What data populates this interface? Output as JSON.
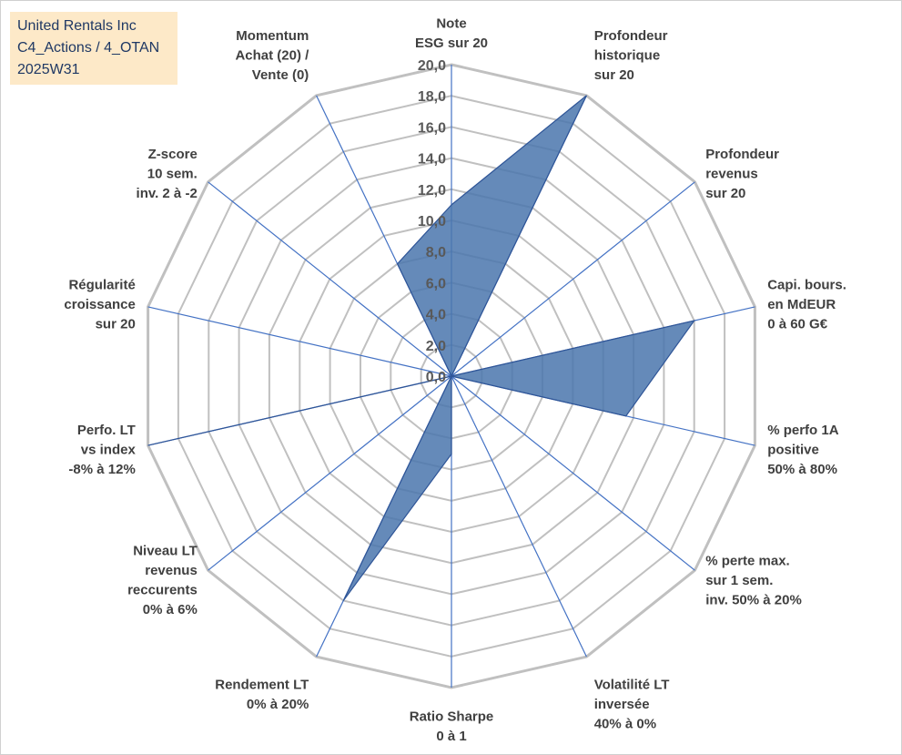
{
  "header": {
    "lines": [
      "United Rentals Inc",
      "C4_Actions / 4_OTAN",
      "2025W31"
    ]
  },
  "colors": {
    "grid": "#c0c0c0",
    "spoke": "#4472c4",
    "fill": "#4a76ad",
    "fill_stroke": "#2f5597",
    "title_bg": "#fde9c8"
  },
  "chart_data": {
    "type": "radar",
    "rmin": 0,
    "rmax": 20,
    "ticks": [
      "0,0",
      "2,0",
      "4,0",
      "6,0",
      "8,0",
      "10,0",
      "12,0",
      "14,0",
      "16,0",
      "18,0",
      "20,0"
    ],
    "axes": [
      [
        "Note",
        "ESG sur 20"
      ],
      [
        "Profondeur",
        "historique",
        "sur 20"
      ],
      [
        "Profondeur",
        "revenus",
        "sur 20"
      ],
      [
        "Capi. bours.",
        "en MdEUR",
        "0 à 60 G€"
      ],
      [
        "% perfo 1A",
        "positive",
        "50% à 80%"
      ],
      [
        "% perte max.",
        "sur 1 sem.",
        "inv. 50% à 20%"
      ],
      [
        "Volatilité LT",
        "inversée",
        "40% à 0%"
      ],
      [
        "Ratio Sharpe",
        "0 à 1"
      ],
      [
        "Rendement LT",
        "0% à 20%"
      ],
      [
        "Niveau LT",
        "revenus",
        "reccurents",
        "0% à 6%"
      ],
      [
        "Perfo. LT",
        "vs index",
        "-8% à 12%"
      ],
      [
        "Régularité",
        "croissance",
        "sur 20"
      ],
      [
        "Z-score",
        "10 sem.",
        "inv. 2 à -2"
      ],
      [
        "Momentum",
        "Achat (20) /",
        "Vente (0)"
      ]
    ],
    "values": [
      11.0,
      20.0,
      0.0,
      16.0,
      11.5,
      0.0,
      0.0,
      5.0,
      16.0,
      0.0,
      20.0,
      0.0,
      0.0,
      8.0
    ]
  }
}
